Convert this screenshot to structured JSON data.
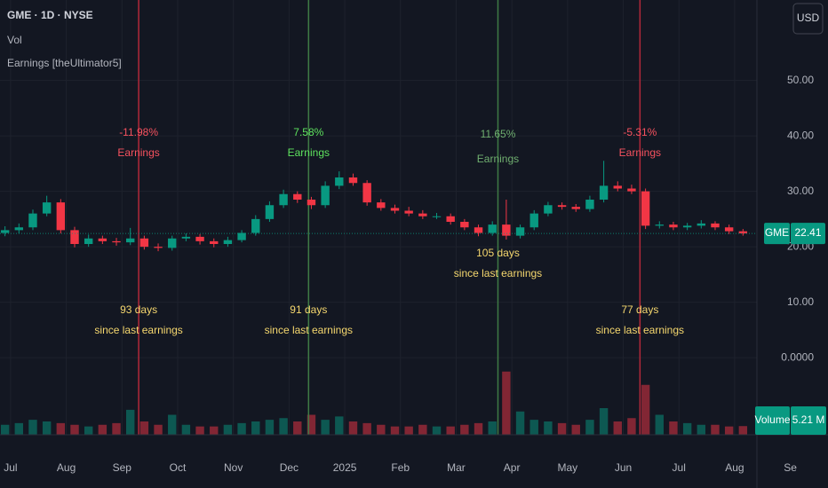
{
  "header": {
    "symbol": "GME · 1D · NYSE",
    "indicators": [
      "Vol",
      "Earnings [theUltimator5]"
    ],
    "currency": "USD"
  },
  "chart_data": {
    "type": "candlestick",
    "name": "GME",
    "x": [
      -0.1,
      0.15,
      0.4,
      0.65,
      0.9,
      1.15,
      1.4,
      1.65,
      1.9,
      2.15,
      2.4,
      2.65,
      2.9,
      3.15,
      3.4,
      3.65,
      3.9,
      4.15,
      4.4,
      4.65,
      4.9,
      5.15,
      5.4,
      5.65,
      5.9,
      6.15,
      6.4,
      6.65,
      6.9,
      7.15,
      7.4,
      7.65,
      7.9,
      8.15,
      8.4,
      8.65,
      8.9,
      9.15,
      9.4,
      9.65,
      9.9,
      10.15,
      10.4,
      10.65,
      10.9,
      11.15,
      11.4,
      11.65,
      11.9,
      12.15,
      12.4,
      12.65,
      12.9,
      13.15
    ],
    "open": [
      22.5,
      23,
      23.5,
      26,
      28,
      23,
      20.5,
      21.5,
      21,
      20.8,
      21.5,
      20,
      19.8,
      21.5,
      21.8,
      21,
      20.5,
      21.2,
      22.5,
      25,
      27.5,
      29.5,
      28.5,
      27.5,
      31,
      32.5,
      31.5,
      28,
      27,
      26.5,
      26,
      25.5,
      25.5,
      24.5,
      23.5,
      22.5,
      24,
      22,
      23.5,
      26,
      27.5,
      27.2,
      26.8,
      28.5,
      31,
      30.5,
      30,
      23.8,
      24,
      23.5,
      23.8,
      24.2,
      23.5,
      22.8
    ],
    "high": [
      23.7,
      24.2,
      26.7,
      29.2,
      28.6,
      23.6,
      22.2,
      22,
      21.6,
      23.4,
      22,
      20.6,
      22,
      22.4,
      22.3,
      21.5,
      21.8,
      23,
      25.7,
      28.2,
      30.3,
      30,
      29,
      31.8,
      33.6,
      33.2,
      32,
      28.6,
      27.6,
      27.2,
      26.6,
      26.1,
      26,
      25,
      24,
      24.6,
      28.5,
      24,
      26.6,
      28.1,
      28,
      27.7,
      29.2,
      35.5,
      31.8,
      31.2,
      30.5,
      24.6,
      24.5,
      24.3,
      24.8,
      24.6,
      24,
      23.2
    ],
    "low": [
      21.9,
      22.4,
      23,
      25.5,
      22.4,
      19.9,
      20,
      20.5,
      20.2,
      20.3,
      19.5,
      19.2,
      19.3,
      21,
      20.4,
      19.9,
      20,
      20.8,
      22,
      24.5,
      27,
      27.9,
      26.8,
      27,
      30.4,
      31,
      27.4,
      26.5,
      26,
      25.5,
      25,
      25,
      24,
      23,
      21.9,
      22,
      21.3,
      21.5,
      23,
      25.5,
      26.7,
      26.3,
      26.3,
      28,
      30,
      29.5,
      23.2,
      23.3,
      23,
      23,
      23.3,
      23,
      22.3,
      22
    ],
    "close": [
      23,
      23.5,
      26,
      28,
      23,
      20.5,
      21.5,
      21,
      20.8,
      21.5,
      20,
      19.8,
      21.5,
      21.8,
      21,
      20.5,
      21.2,
      22.5,
      25,
      27.5,
      29.5,
      28.5,
      27.5,
      31,
      32.5,
      31.5,
      28,
      27,
      26.5,
      26,
      25.5,
      25.5,
      24.5,
      23.5,
      22.5,
      24,
      22,
      23.5,
      26,
      27.5,
      27.2,
      26.8,
      28.5,
      31,
      30.5,
      30,
      23.8,
      24,
      23.5,
      23.8,
      24.2,
      23.5,
      22.8,
      22.41
    ],
    "up_color": "#089981",
    "down_color": "#f23645",
    "volume": {
      "name": "Volume",
      "last_value_label": "5.21 M",
      "values": [
        6000000,
        7000000,
        9000000,
        8000000,
        7000000,
        6000000,
        5000000,
        6000000,
        7000000,
        15000000,
        8000000,
        6000000,
        12000000,
        6000000,
        5000000,
        5000000,
        6000000,
        7000000,
        8000000,
        9000000,
        10000000,
        8000000,
        12000000,
        9000000,
        11000000,
        8000000,
        7000000,
        6000000,
        5000000,
        5000000,
        6000000,
        5000000,
        5000000,
        6000000,
        7000000,
        8000000,
        38000000,
        14000000,
        9000000,
        8000000,
        7000000,
        6000000,
        9000000,
        16000000,
        8000000,
        10000000,
        30000000,
        12000000,
        8000000,
        7000000,
        6000000,
        6000000,
        5000000,
        5210000
      ]
    },
    "volume_lim": [
      0,
      40000000
    ],
    "xlim": [
      -0.19,
      13.4
    ],
    "xticks": [
      {
        "value": 0,
        "label": "Jul"
      },
      {
        "value": 1,
        "label": "Aug"
      },
      {
        "value": 2,
        "label": "Sep"
      },
      {
        "value": 3,
        "label": "Oct"
      },
      {
        "value": 4,
        "label": "Nov"
      },
      {
        "value": 5,
        "label": "Dec"
      },
      {
        "value": 6,
        "label": "2025"
      },
      {
        "value": 7,
        "label": "Feb"
      },
      {
        "value": 8,
        "label": "Mar"
      },
      {
        "value": 9,
        "label": "Apr"
      },
      {
        "value": 10,
        "label": "May"
      },
      {
        "value": 11,
        "label": "Jun"
      },
      {
        "value": 12,
        "label": "Jul"
      },
      {
        "value": 13,
        "label": "Aug"
      },
      {
        "value": 14,
        "label": "Se"
      }
    ],
    "ylim": [
      -13.9,
      64.5
    ],
    "yticks": [
      {
        "value": 0,
        "label": "0.0000"
      },
      {
        "value": 10,
        "label": "10.00"
      },
      {
        "value": 20,
        "label": "20.00"
      },
      {
        "value": 30,
        "label": "30.00"
      },
      {
        "value": 40,
        "label": "40.00"
      },
      {
        "value": 50,
        "label": "50.00"
      }
    ],
    "grid": true,
    "days_color": "#f5d76e",
    "earnings": [
      {
        "x": 2.3,
        "change": -11.98,
        "change_label": "-11.98%",
        "text": "Earnings",
        "days": 93,
        "days_label": "93 days",
        "note": "since last earnings",
        "line_color": "#b2283a",
        "text_color": "#f7525f"
      },
      {
        "x": 5.35,
        "change": 7.58,
        "change_label": "7.58%",
        "text": "Earnings",
        "days": 91,
        "days_label": "91 days",
        "note": "since last earnings",
        "line_color": "#3f7a45",
        "text_color": "#5ee35e"
      },
      {
        "x": 8.75,
        "change": 11.65,
        "change_label": "11.65%",
        "text": "Earnings",
        "days": 105,
        "days_label": "105 days",
        "note": "since last earnings",
        "line_color": "#3f7a45",
        "text_color": "#6fae6f"
      },
      {
        "x": 11.3,
        "change": -5.31,
        "change_label": "-5.31%",
        "text": "Earnings",
        "days": 77,
        "days_label": "77 days",
        "note": "since last earnings",
        "line_color": "#b2283a",
        "text_color": "#f7525f"
      }
    ]
  }
}
